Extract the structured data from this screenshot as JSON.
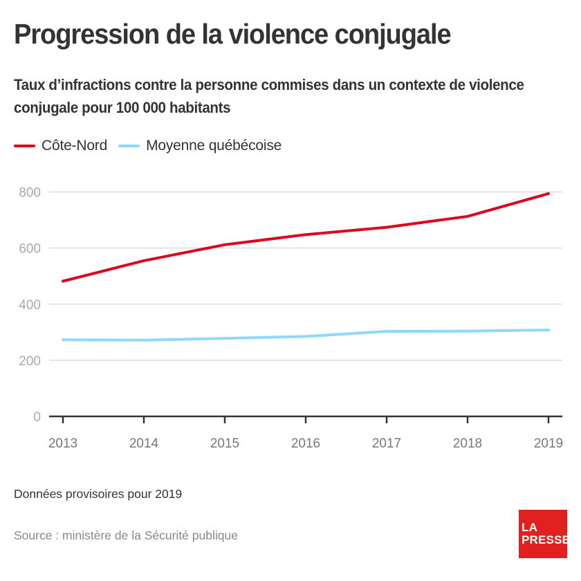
{
  "header": {
    "title": "Progression de la violence conjugale",
    "subtitle": "Taux d’infractions contre la personne commises dans un contexte de violence conjugale pour 100 000 habitants"
  },
  "legend": [
    {
      "label": "Côte-Nord",
      "color": "#e0001b"
    },
    {
      "label": "Moyenne québécoise",
      "color": "#8fd8fb"
    }
  ],
  "footer": {
    "note": "Données provisoires pour 2019",
    "source": "Source : ministère de la Sécurité publique",
    "logo_line1": "LA",
    "logo_line2": "PRESSE",
    "logo_color": "#e2201f"
  },
  "chart_data": {
    "type": "line",
    "title": "Progression de la violence conjugale",
    "subtitle": "Taux d’infractions contre la personne commises dans un contexte de violence conjugale pour 100 000 habitants",
    "xlabel": "",
    "ylabel": "",
    "x": [
      "2013",
      "2014",
      "2015",
      "2016",
      "2017",
      "2018",
      "2019"
    ],
    "ylim": [
      0,
      800
    ],
    "yticks": [
      0,
      200,
      400,
      600,
      800
    ],
    "grid": true,
    "legend_position": "top-left",
    "series": [
      {
        "name": "Côte-Nord",
        "color": "#e0001b",
        "values": [
          482,
          555,
          612,
          648,
          674,
          713,
          794
        ]
      },
      {
        "name": "Moyenne québécoise",
        "color": "#8fd8fb",
        "values": [
          273,
          272,
          278,
          285,
          303,
          304,
          308
        ]
      }
    ]
  }
}
